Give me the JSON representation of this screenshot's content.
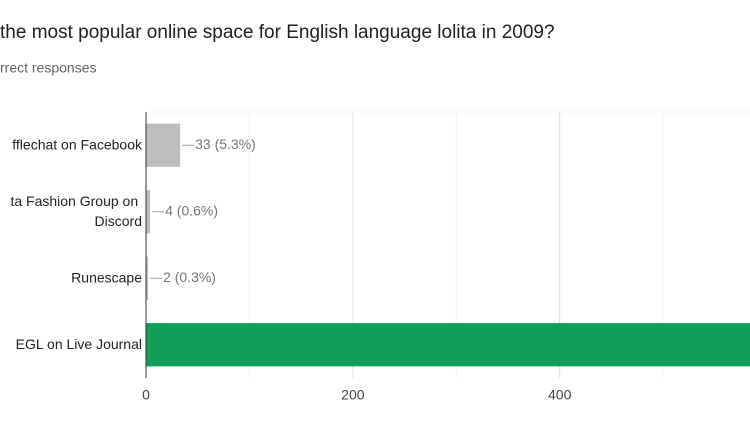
{
  "chart_data": {
    "type": "hbar",
    "title": "the most popular online space for English language lolita in 2009?",
    "subtitle": "rrect responses",
    "categories": [
      "fflechat on Facebook",
      "ta Fashion Group on\nDiscord",
      "Runescape",
      "EGL on Live Journal"
    ],
    "values": [
      33,
      4,
      2,
      584
    ],
    "value_labels": [
      "33 (5.3%)",
      "4 (0.6%)",
      "2 (0.3%)",
      null
    ],
    "colors": [
      "#bdbdbd",
      "#bdbdbd",
      "#bdbdbd",
      "#0f9d58"
    ],
    "xlim": [
      0,
      584
    ],
    "xticks": [
      0,
      200,
      400
    ],
    "minor_grid": [
      100,
      300,
      500
    ],
    "grid": true
  }
}
